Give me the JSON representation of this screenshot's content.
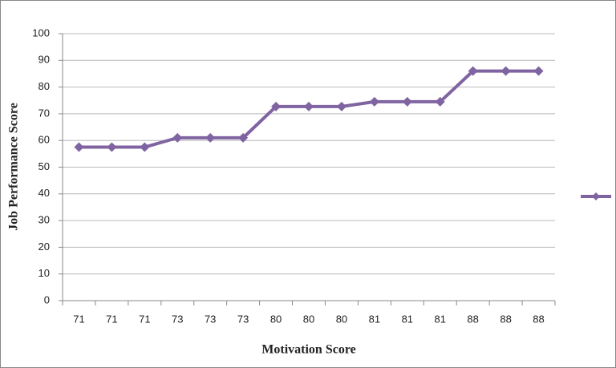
{
  "chart_data": {
    "type": "line",
    "x_label": "Motivation Score",
    "y_label": "Job Performance Score",
    "categories": [
      "71",
      "71",
      "71",
      "73",
      "73",
      "73",
      "80",
      "80",
      "80",
      "81",
      "81",
      "81",
      "88",
      "88",
      "88"
    ],
    "values": [
      57.5,
      57.5,
      57.5,
      61,
      61,
      61,
      72.7,
      72.7,
      72.7,
      74.5,
      74.5,
      74.5,
      86,
      86,
      86
    ],
    "color": "#8064a2",
    "ylim": [
      0,
      100
    ],
    "yticks": [
      0,
      10,
      20,
      30,
      40,
      50,
      60,
      70,
      80,
      90,
      100
    ],
    "grid": true
  }
}
